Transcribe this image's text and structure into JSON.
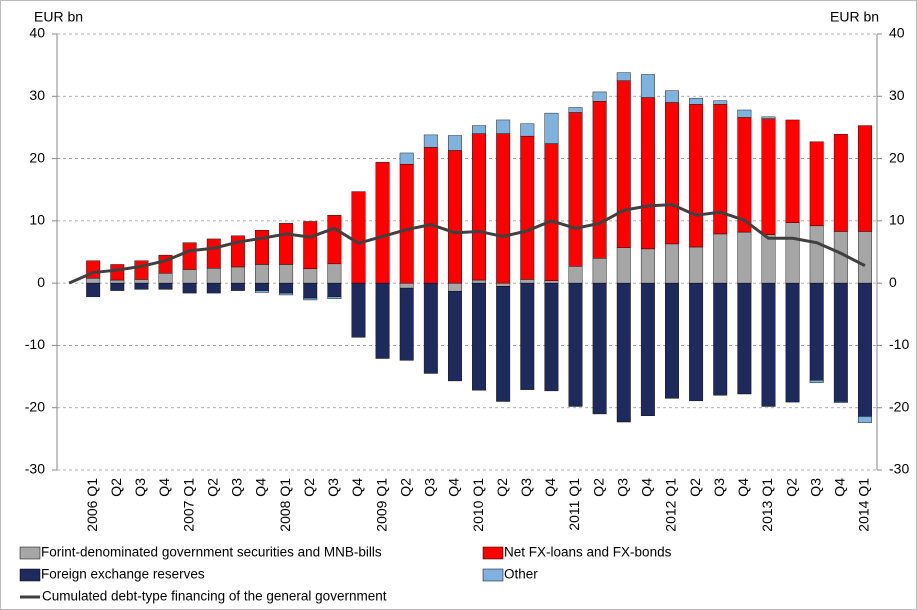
{
  "chart_data": {
    "type": "bar",
    "stacked": true,
    "y_label": "EUR bn",
    "y2_label": "EUR bn",
    "categories": [
      null,
      "2006 Q1",
      "Q2",
      "Q3",
      "Q4",
      "2007 Q1",
      "Q2",
      "Q3",
      "Q4",
      "2008 Q1",
      "Q2",
      "Q3",
      "Q4",
      "2009 Q1",
      "Q2",
      "Q3",
      "Q4",
      "2010 Q1",
      "Q2",
      "Q3",
      "Q4",
      "2011 Q1",
      "Q2",
      "Q3",
      "Q4",
      "2012 Q1",
      "Q2",
      "Q3",
      "Q4",
      "2013 Q1",
      "Q2",
      "Q3",
      "Q4",
      "2014 Q1"
    ],
    "series": [
      {
        "name": "Forint-denominated government securities and MNB-bills",
        "type": "bar",
        "color": "#a6a6a6",
        "values": [
          null,
          0.8,
          0.5,
          0.6,
          1.6,
          2.2,
          2.4,
          2.6,
          3.0,
          3.0,
          2.3,
          3.1,
          0,
          0,
          -0.8,
          0,
          -1.3,
          0.5,
          -0.5,
          0.6,
          0.4,
          2.7,
          4.0,
          5.7,
          5.5,
          6.3,
          5.8,
          7.9,
          8.2,
          7.8,
          9.7,
          9.2,
          8.3,
          8.3
        ]
      },
      {
        "name": "Net FX-loans and FX-bonds",
        "type": "bar",
        "color": "#ff0000",
        "values": [
          null,
          2.8,
          2.5,
          3.0,
          2.9,
          4.3,
          4.7,
          5.0,
          5.5,
          6.6,
          7.6,
          7.8,
          14.7,
          19.4,
          19.1,
          21.8,
          21.3,
          23.5,
          24.0,
          23.0,
          22.0,
          24.7,
          25.2,
          26.8,
          24.3,
          22.7,
          22.9,
          20.8,
          18.4,
          18.6,
          16.5,
          13.5,
          15.6,
          17.0
        ]
      },
      {
        "name": "Foreign exchange reserves",
        "type": "bar",
        "color": "#1f2a5c",
        "values": [
          null,
          -2.2,
          -1.2,
          -1.0,
          -1.0,
          -1.6,
          -1.6,
          -1.2,
          -1.2,
          -1.6,
          -2.4,
          -2.2,
          -8.7,
          -12.1,
          -11.6,
          -14.5,
          -14.4,
          -17.2,
          -18.5,
          -17.1,
          -17.3,
          -19.8,
          -21.0,
          -22.3,
          -21.3,
          -18.5,
          -18.9,
          -18.0,
          -17.8,
          -19.8,
          -19.1,
          -15.6,
          -19.0,
          -21.4
        ]
      },
      {
        "name": "Other",
        "type": "bar",
        "color": "#7fb2dc",
        "values": [
          null,
          0,
          0,
          0,
          0,
          0,
          0,
          0,
          -0.3,
          -0.3,
          -0.3,
          -0.3,
          0,
          0,
          1.8,
          2.0,
          2.4,
          1.3,
          2.2,
          2.0,
          4.9,
          0.8,
          1.5,
          1.3,
          3.7,
          1.9,
          1.0,
          0.6,
          1.2,
          0.3,
          0,
          -0.4,
          -0.2,
          -1.0
        ]
      },
      {
        "name": "Cumulated debt-type financing of the general government",
        "type": "line",
        "color": "#404040",
        "values": [
          0,
          1.7,
          2.1,
          2.7,
          3.6,
          5.2,
          5.6,
          6.6,
          7.2,
          7.9,
          7.4,
          8.8,
          6.4,
          7.5,
          8.6,
          9.4,
          8.1,
          8.3,
          7.5,
          8.4,
          10.0,
          8.8,
          9.6,
          11.7,
          12.4,
          12.6,
          10.9,
          11.4,
          10.1,
          7.2,
          7.2,
          6.5,
          4.8,
          2.8
        ]
      }
    ],
    "ylim": [
      -30,
      40
    ],
    "yticks": [
      -30,
      -20,
      -10,
      0,
      10,
      20,
      30,
      40
    ],
    "y2lim": [
      -30,
      40
    ],
    "y2ticks": [
      -30,
      -20,
      -10,
      0,
      10,
      20,
      30,
      40
    ],
    "grid": true
  }
}
